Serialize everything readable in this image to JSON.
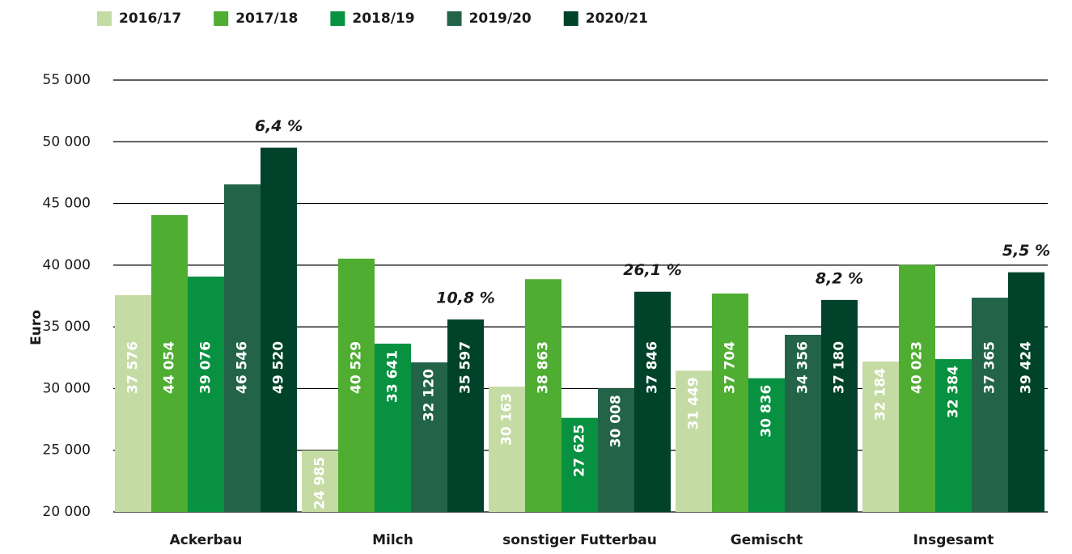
{
  "chart_data": {
    "type": "bar",
    "y_label": "Euro",
    "categories": [
      "Ackerbau",
      "Milch",
      "sonstiger Futterbau",
      "Gemischt",
      "Insgesamt"
    ],
    "series": [
      {
        "name": "2016/17",
        "color": "#c5dba4",
        "values": [
          37576,
          24985,
          30163,
          31449,
          32184
        ],
        "value_labels": [
          "37 576",
          "24 985",
          "30 163",
          "31 449",
          "32 184"
        ]
      },
      {
        "name": "2017/18",
        "color": "#4fad32",
        "values": [
          44054,
          40529,
          38863,
          37704,
          40023
        ],
        "value_labels": [
          "44 054",
          "40 529",
          "38 863",
          "37 704",
          "40 023"
        ]
      },
      {
        "name": "2018/19",
        "color": "#079140",
        "values": [
          39076,
          33641,
          27625,
          30836,
          32384
        ],
        "value_labels": [
          "39 076",
          "33 641",
          "27 625",
          "30 836",
          "32 384"
        ]
      },
      {
        "name": "2019/20",
        "color": "#236449",
        "values": [
          46546,
          32120,
          30008,
          34356,
          37365
        ],
        "value_labels": [
          "46 546",
          "32 120",
          "30 008",
          "34 356",
          "37 365"
        ]
      },
      {
        "name": "2020/21",
        "color": "#00432a",
        "values": [
          49520,
          35597,
          37846,
          37180,
          39424
        ],
        "value_labels": [
          "49 520",
          "35 597",
          "37 846",
          "37 180",
          "39 424"
        ]
      }
    ],
    "annotations": [
      "6,4 %",
      "10,8 %",
      "26,1 %",
      "8,2 %",
      "5,5 %"
    ],
    "ylim": [
      20000,
      55000
    ],
    "yticks": [
      {
        "value": 20000,
        "label": "20 000"
      },
      {
        "value": 25000,
        "label": "25 000"
      },
      {
        "value": 30000,
        "label": "30 000"
      },
      {
        "value": 35000,
        "label": "35 000"
      },
      {
        "value": 40000,
        "label": "40 000"
      },
      {
        "value": 45000,
        "label": "45 000"
      },
      {
        "value": 50000,
        "label": "50 000"
      },
      {
        "value": 55000,
        "label": "55 000"
      }
    ],
    "grid": true,
    "legend": "top"
  }
}
